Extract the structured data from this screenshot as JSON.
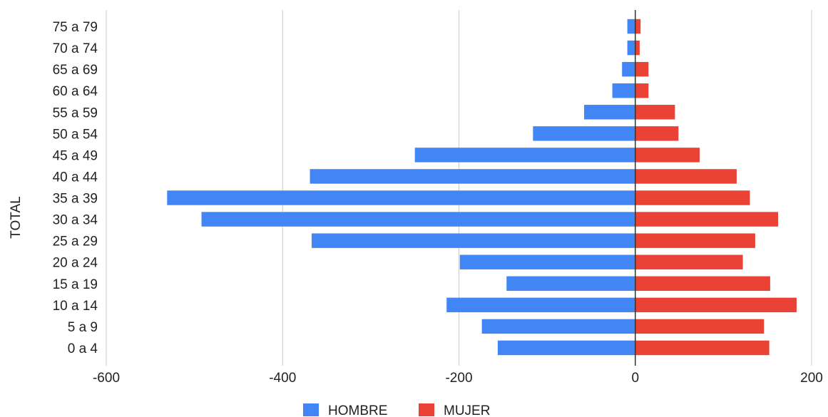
{
  "chart_data": {
    "type": "bar",
    "orientation": "horizontal",
    "stacked": true,
    "ylabel": "TOTAL",
    "xlabel": "",
    "xlim": [
      -600,
      200
    ],
    "xticks": [
      -600,
      -400,
      -200,
      0,
      200
    ],
    "xtick_labels": [
      "-600",
      "-400",
      "-200",
      "0",
      "200"
    ],
    "grid": true,
    "legend_position": "bottom",
    "categories": [
      "0 a 4",
      "5 a 9",
      "10 a 14",
      "15 a 19",
      "20 a 24",
      "25 a 29",
      "30 a 34",
      "35 a 39",
      "40 a 44",
      "45 a 49",
      "50 a 54",
      "55 a 59",
      "60 a 64",
      "65 a 69",
      "70 a 74",
      "75 a 79"
    ],
    "series": [
      {
        "name": "HOMBRE",
        "color": "#4285f4",
        "values": [
          -156,
          -174,
          -214,
          -146,
          -199,
          -367,
          -492,
          -531,
          -369,
          -250,
          -116,
          -58,
          -26,
          -15,
          -9,
          -9
        ]
      },
      {
        "name": "MUJER",
        "color": "#ea4335",
        "values": [
          152,
          146,
          183,
          153,
          122,
          136,
          162,
          130,
          115,
          73,
          49,
          45,
          15,
          15,
          5,
          6
        ]
      }
    ]
  }
}
